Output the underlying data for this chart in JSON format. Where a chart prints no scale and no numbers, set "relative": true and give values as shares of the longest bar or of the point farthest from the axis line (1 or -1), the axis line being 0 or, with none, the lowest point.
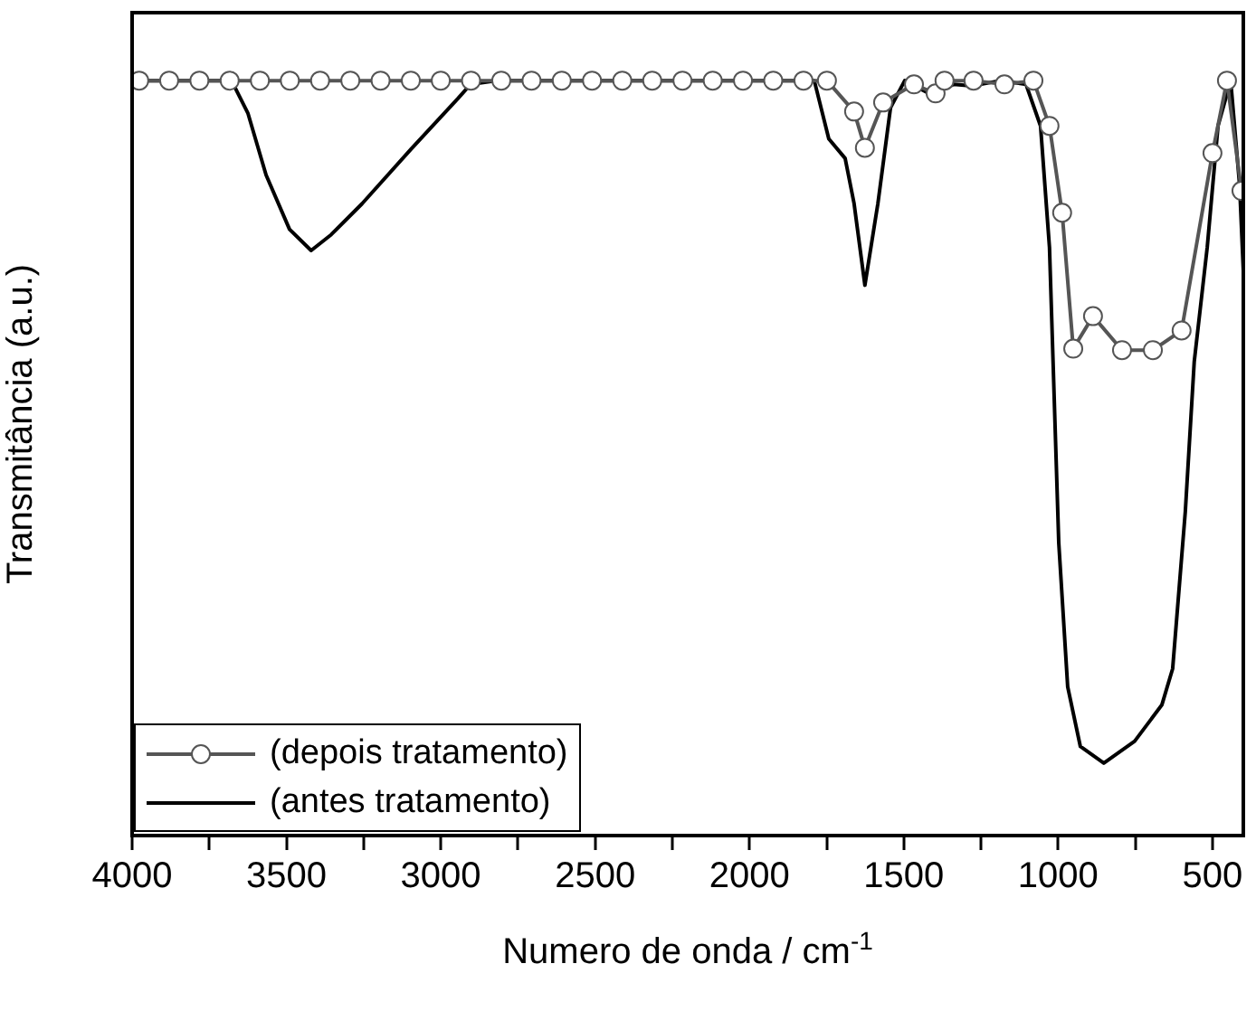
{
  "chart_data": {
    "type": "line",
    "xlabel": "Numero de onda / cm$^{-1}$",
    "ylabel": "Transmitância (a.u.)",
    "relative": true,
    "xlim": [
      4000,
      400
    ],
    "xticks": [
      4000,
      {
        "value": 3750,
        "label": null
      },
      3500,
      {
        "value": 3250,
        "label": null
      },
      3000,
      {
        "value": 2750,
        "label": null
      },
      2500,
      {
        "value": 2250,
        "label": null
      },
      2000,
      {
        "value": 1750,
        "label": null
      },
      1500,
      {
        "value": 1250,
        "label": null
      },
      1000,
      {
        "value": 750,
        "label": null
      },
      500
    ],
    "legend": "bottom left",
    "grid": false,
    "tick_labels": "x",
    "series": [
      {
        "name": "(depois tratamento)",
        "color": "#555555",
        "marker": "circle",
        "x": [
          3977,
          3880,
          3782,
          3684,
          3586,
          3489,
          3391,
          3293,
          3195,
          3097,
          3000,
          2902,
          2804,
          2706,
          2608,
          2510,
          2412,
          2315,
          2217,
          2119,
          2021,
          1923,
          1825,
          1749,
          1661,
          1626,
          1567,
          1467,
          1397,
          1368,
          1274,
          1174,
          1080,
          1028,
          987,
          951,
          887,
          793,
          693,
          600,
          500,
          453,
          406
        ],
        "values": [
          1,
          1,
          1,
          1,
          1,
          1,
          1,
          1,
          1,
          1,
          1,
          1,
          1,
          1,
          1,
          1,
          1,
          1,
          1,
          1,
          1,
          1,
          1,
          1,
          0.959,
          0.911,
          0.971,
          0.995,
          0.983,
          1,
          1,
          0.995,
          1,
          0.94,
          0.825,
          0.645,
          0.688,
          0.643,
          0.643,
          0.669,
          0.904,
          1,
          0.854
        ]
      },
      {
        "name": "(antes tratamento)",
        "color": "#000000",
        "marker": "none",
        "x": [
          4000,
          3678,
          3625,
          3566,
          3490,
          3420,
          3355,
          3255,
          3097,
          2945,
          2904,
          2816,
          1790,
          1743,
          1690,
          1661,
          1626,
          1584,
          1543,
          1497,
          1409,
          1338,
          1280,
          1186,
          1104,
          1057,
          1028,
          998,
          969,
          928,
          852,
          752,
          664,
          629,
          588,
          559,
          517,
          482,
          441,
          412,
          400
        ],
        "values": [
          1,
          1,
          0.957,
          0.875,
          0.803,
          0.775,
          0.796,
          0.837,
          0.909,
          0.976,
          0.995,
          1,
          1,
          0.923,
          0.897,
          0.837,
          0.729,
          0.837,
          0.964,
          1,
          0.981,
          0.995,
          0.993,
          1,
          0.995,
          0.94,
          0.779,
          0.388,
          0.197,
          0.118,
          0.096,
          0.125,
          0.173,
          0.221,
          0.429,
          0.628,
          0.779,
          0.94,
          1,
          0.861,
          0.748
        ]
      }
    ]
  }
}
